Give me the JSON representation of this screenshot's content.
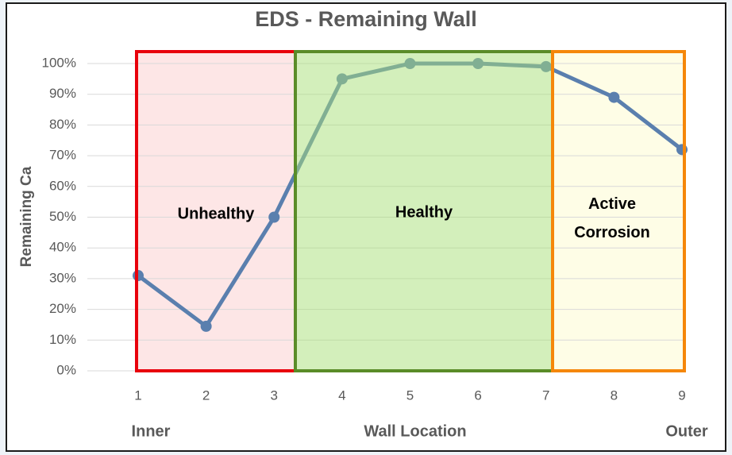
{
  "chart_data": {
    "type": "line",
    "title": "EDS - Remaining Wall",
    "x_label": "Wall Location",
    "y_label": "Remaining Ca",
    "x_end_labels": [
      "Inner",
      "Outer"
    ],
    "annotations": [
      "Unhealthy",
      "Healthy",
      "Active Corrosion"
    ],
    "x": [
      1,
      2,
      3,
      4,
      5,
      6,
      7,
      8,
      9
    ],
    "series": [
      {
        "name": "Remaining Ca",
        "color": "#5a7fae",
        "values": [
          31,
          14.5,
          50,
          95,
          100,
          100,
          99,
          89,
          72
        ]
      }
    ],
    "xlim": [
      1,
      9
    ],
    "xticks": [
      1,
      2,
      3,
      4,
      5,
      6,
      7,
      8,
      9
    ],
    "ylim": [
      0,
      100
    ],
    "yticks": [
      {
        "value": 0,
        "label": "0%"
      },
      {
        "value": 10,
        "label": "10%"
      },
      {
        "value": 20,
        "label": "20%"
      },
      {
        "value": 30,
        "label": "30%"
      },
      {
        "value": 40,
        "label": "40%"
      },
      {
        "value": 50,
        "label": "50%"
      },
      {
        "value": 60,
        "label": "60%"
      },
      {
        "value": 70,
        "label": "70%"
      },
      {
        "value": 80,
        "label": "80%"
      },
      {
        "value": 90,
        "label": "90%"
      },
      {
        "value": 100,
        "label": "100%"
      }
    ],
    "grid": true
  }
}
